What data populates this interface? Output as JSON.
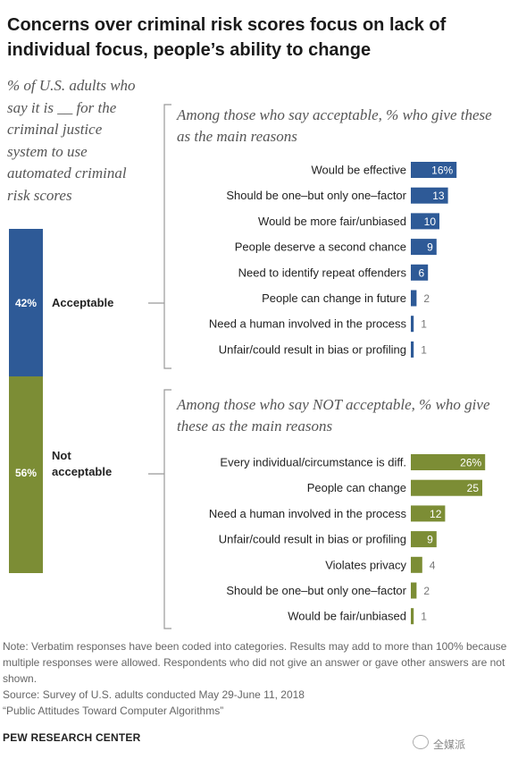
{
  "title": "Concerns over criminal risk scores focus on lack of individual focus, people’s ability to change",
  "subtitle": "% of U.S. adults who say it is __ for the criminal justice system to use automated criminal risk scores",
  "colors": {
    "acceptable": "#2e5a97",
    "not_acceptable": "#7c8d35"
  },
  "chart_data": [
    {
      "type": "bar",
      "title": "",
      "categories": [
        "Acceptable",
        "Not acceptable"
      ],
      "values": [
        42,
        56
      ],
      "value_labels": [
        "42%",
        "56%"
      ]
    },
    {
      "type": "bar",
      "title": "Among those who say acceptable, % who give these as the main reasons",
      "categories": [
        "Would be effective",
        "Should be one–but only one–factor",
        "Would be more fair/unbiased",
        "People deserve a second chance",
        "Need to identify repeat offenders",
        "People can change in future",
        "Need a human involved in the process",
        "Unfair/could result in bias or profiling"
      ],
      "values": [
        16,
        13,
        10,
        9,
        6,
        2,
        1,
        1
      ],
      "value_labels": [
        "16%",
        "13",
        "10",
        "9",
        "6",
        "2",
        "1",
        "1"
      ]
    },
    {
      "type": "bar",
      "title": "Among those who say NOT acceptable, % who give these as the main reasons",
      "categories": [
        "Every individual/circumstance is diff.",
        "People can change",
        "Need a human involved in the process",
        "Unfair/could result in bias or profiling",
        "Violates privacy",
        "Should be one–but only one–factor",
        "Would be fair/unbiased"
      ],
      "values": [
        26,
        25,
        12,
        9,
        4,
        2,
        1
      ],
      "value_labels": [
        "26%",
        "25",
        "12",
        "9",
        "4",
        "2",
        "1"
      ]
    }
  ],
  "notes": {
    "note": "Note: Verbatim responses have been coded into categories. Results may add to more than 100% because multiple responses were allowed. Respondents who did not give an answer or gave other answers are not shown.",
    "source": "Source: Survey of U.S. adults conducted May 29-June 11, 2018",
    "report": "“Public Attitudes Toward Computer Algorithms”"
  },
  "brand": "PEW RESEARCH CENTER",
  "watermark": "全媒派"
}
